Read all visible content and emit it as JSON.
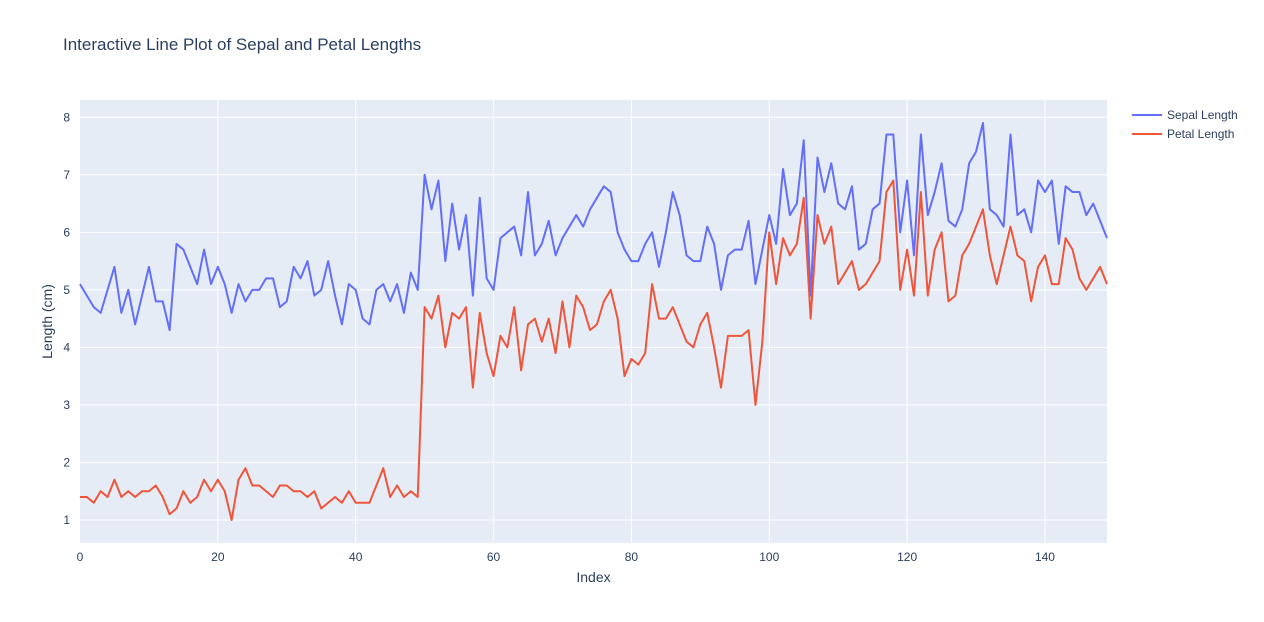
{
  "chart_data": {
    "type": "line",
    "title": "Interactive Line Plot of Sepal and Petal Lengths",
    "xlabel": "Index",
    "ylabel": "Length (cm)",
    "xlim": [
      0,
      149
    ],
    "ylim": [
      0.6,
      8.3
    ],
    "xticks": [
      0,
      20,
      40,
      60,
      80,
      100,
      120,
      140
    ],
    "yticks": [
      1,
      2,
      3,
      4,
      5,
      6,
      7,
      8
    ],
    "grid": true,
    "legend_position": "top-right",
    "background": "#E5ECF6",
    "series": [
      {
        "name": "Sepal Length",
        "color": "#636EFA",
        "values": [
          5.1,
          4.9,
          4.7,
          4.6,
          5.0,
          5.4,
          4.6,
          5.0,
          4.4,
          4.9,
          5.4,
          4.8,
          4.8,
          4.3,
          5.8,
          5.7,
          5.4,
          5.1,
          5.7,
          5.1,
          5.4,
          5.1,
          4.6,
          5.1,
          4.8,
          5.0,
          5.0,
          5.2,
          5.2,
          4.7,
          4.8,
          5.4,
          5.2,
          5.5,
          4.9,
          5.0,
          5.5,
          4.9,
          4.4,
          5.1,
          5.0,
          4.5,
          4.4,
          5.0,
          5.1,
          4.8,
          5.1,
          4.6,
          5.3,
          5.0,
          7.0,
          6.4,
          6.9,
          5.5,
          6.5,
          5.7,
          6.3,
          4.9,
          6.6,
          5.2,
          5.0,
          5.9,
          6.0,
          6.1,
          5.6,
          6.7,
          5.6,
          5.8,
          6.2,
          5.6,
          5.9,
          6.1,
          6.3,
          6.1,
          6.4,
          6.6,
          6.8,
          6.7,
          6.0,
          5.7,
          5.5,
          5.5,
          5.8,
          6.0,
          5.4,
          6.0,
          6.7,
          6.3,
          5.6,
          5.5,
          5.5,
          6.1,
          5.8,
          5.0,
          5.6,
          5.7,
          5.7,
          6.2,
          5.1,
          5.7,
          6.3,
          5.8,
          7.1,
          6.3,
          6.5,
          7.6,
          4.9,
          7.3,
          6.7,
          7.2,
          6.5,
          6.4,
          6.8,
          5.7,
          5.8,
          6.4,
          6.5,
          7.7,
          7.7,
          6.0,
          6.9,
          5.6,
          7.7,
          6.3,
          6.7,
          7.2,
          6.2,
          6.1,
          6.4,
          7.2,
          7.4,
          7.9,
          6.4,
          6.3,
          6.1,
          7.7,
          6.3,
          6.4,
          6.0,
          6.9,
          6.7,
          6.9,
          5.8,
          6.8,
          6.7,
          6.7,
          6.3,
          6.5,
          6.2,
          5.9
        ]
      },
      {
        "name": "Petal Length",
        "color": "#EF553B",
        "values": [
          1.4,
          1.4,
          1.3,
          1.5,
          1.4,
          1.7,
          1.4,
          1.5,
          1.4,
          1.5,
          1.5,
          1.6,
          1.4,
          1.1,
          1.2,
          1.5,
          1.3,
          1.4,
          1.7,
          1.5,
          1.7,
          1.5,
          1.0,
          1.7,
          1.9,
          1.6,
          1.6,
          1.5,
          1.4,
          1.6,
          1.6,
          1.5,
          1.5,
          1.4,
          1.5,
          1.2,
          1.3,
          1.4,
          1.3,
          1.5,
          1.3,
          1.3,
          1.3,
          1.6,
          1.9,
          1.4,
          1.6,
          1.4,
          1.5,
          1.4,
          4.7,
          4.5,
          4.9,
          4.0,
          4.6,
          4.5,
          4.7,
          3.3,
          4.6,
          3.9,
          3.5,
          4.2,
          4.0,
          4.7,
          3.6,
          4.4,
          4.5,
          4.1,
          4.5,
          3.9,
          4.8,
          4.0,
          4.9,
          4.7,
          4.3,
          4.4,
          4.8,
          5.0,
          4.5,
          3.5,
          3.8,
          3.7,
          3.9,
          5.1,
          4.5,
          4.5,
          4.7,
          4.4,
          4.1,
          4.0,
          4.4,
          4.6,
          4.0,
          3.3,
          4.2,
          4.2,
          4.2,
          4.3,
          3.0,
          4.1,
          6.0,
          5.1,
          5.9,
          5.6,
          5.8,
          6.6,
          4.5,
          6.3,
          5.8,
          6.1,
          5.1,
          5.3,
          5.5,
          5.0,
          5.1,
          5.3,
          5.5,
          6.7,
          6.9,
          5.0,
          5.7,
          4.9,
          6.7,
          4.9,
          5.7,
          6.0,
          4.8,
          4.9,
          5.6,
          5.8,
          6.1,
          6.4,
          5.6,
          5.1,
          5.6,
          6.1,
          5.6,
          5.5,
          4.8,
          5.4,
          5.6,
          5.1,
          5.1,
          5.9,
          5.7,
          5.2,
          5.0,
          5.2,
          5.4,
          5.1
        ]
      }
    ]
  }
}
